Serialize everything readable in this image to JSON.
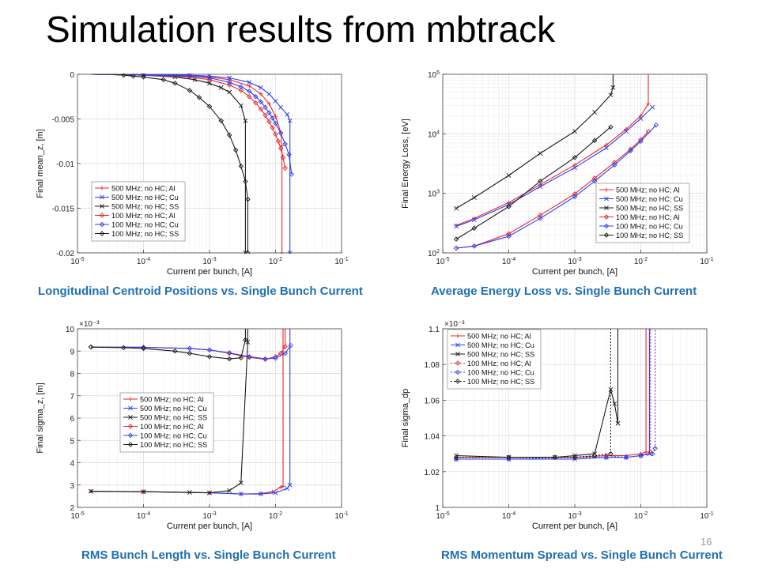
{
  "slide": {
    "title": "Simulation results from mbtrack",
    "page_number": "16"
  },
  "chart_data": [
    {
      "type": "line",
      "caption": "Longitudinal Centroid Positions vs. Single Bunch Current",
      "xlabel": "Current per bunch, [A]",
      "ylabel": "Final mean_z, [m]",
      "xscale": "log",
      "yscale": "linear",
      "xlim": [
        1e-05,
        0.1
      ],
      "ylim": [
        -0.02,
        0
      ],
      "xticks": [
        1e-05,
        0.0001,
        0.001,
        0.01,
        0.1
      ],
      "xticklabels": [
        [
          "10",
          "-5"
        ],
        [
          "10",
          "-4"
        ],
        [
          "10",
          "-3"
        ],
        [
          "10",
          "-2"
        ],
        [
          "10",
          "-1"
        ]
      ],
      "yticks": [
        -0.02,
        -0.015,
        -0.01,
        -0.005,
        0
      ],
      "yticklabels": [
        "-0.02",
        "-0.015",
        "-0.01",
        "-0.005",
        "0"
      ],
      "yexp": "",
      "grid": true,
      "legend_position": "lower-left",
      "series": [
        {
          "name": "500 MHz; no HC; Al",
          "color": "#e8262b",
          "marker": "plus",
          "dash": "solid",
          "x": [
            1.6e-05,
            0.0001,
            0.0005,
            0.001,
            0.002,
            0.004,
            0.006,
            0.008,
            0.01,
            0.012,
            0.0125,
            0.0125
          ],
          "y": [
            0,
            -0.0001,
            -0.0002,
            -0.0003,
            -0.0006,
            -0.0013,
            -0.0022,
            -0.0033,
            -0.0047,
            -0.0065,
            -0.008,
            -0.02
          ]
        },
        {
          "name": "500 MHz; no HC; Cu",
          "color": "#2b3ff0",
          "marker": "x",
          "dash": "solid",
          "x": [
            1.6e-05,
            0.0001,
            0.0005,
            0.001,
            0.002,
            0.004,
            0.006,
            0.008,
            0.01,
            0.012,
            0.015,
            0.0165,
            0.0165
          ],
          "y": [
            0,
            -0.0001,
            -0.0001,
            -0.0002,
            -0.0004,
            -0.0009,
            -0.0015,
            -0.0022,
            -0.003,
            -0.0037,
            -0.0045,
            -0.0052,
            -0.02
          ]
        },
        {
          "name": "500 MHz; no HC; SS",
          "color": "#1a1a1a",
          "marker": "x",
          "dash": "solid",
          "x": [
            1.6e-05,
            0.0001,
            0.0003,
            0.0006,
            0.001,
            0.0015,
            0.002,
            0.003,
            0.0035,
            0.0035
          ],
          "y": [
            0,
            -0.0001,
            -0.0003,
            -0.0006,
            -0.001,
            -0.0015,
            -0.002,
            -0.0035,
            -0.0052,
            -0.02
          ]
        },
        {
          "name": "100 MHz; no HC; Al",
          "color": "#e8262b",
          "marker": "diamond",
          "dash": "solid",
          "x": [
            1.6e-05,
            0.0001,
            0.0005,
            0.001,
            0.002,
            0.003,
            0.004,
            0.005,
            0.006,
            0.007,
            0.008,
            0.009,
            0.01,
            0.011,
            0.012,
            0.013,
            0.014
          ],
          "y": [
            0,
            -0.0001,
            -0.0003,
            -0.0006,
            -0.0012,
            -0.0018,
            -0.0025,
            -0.0032,
            -0.0039,
            -0.0046,
            -0.0053,
            -0.006,
            -0.0067,
            -0.0075,
            -0.0083,
            -0.0093,
            -0.0105
          ]
        },
        {
          "name": "100 MHz; no HC; Cu",
          "color": "#2b3ff0",
          "marker": "diamond",
          "dash": "solid",
          "x": [
            1.6e-05,
            0.0001,
            0.0005,
            0.001,
            0.002,
            0.003,
            0.004,
            0.005,
            0.006,
            0.007,
            0.008,
            0.009,
            0.01,
            0.012,
            0.014,
            0.016,
            0.0175
          ],
          "y": [
            0,
            -0.0001,
            -0.0002,
            -0.0004,
            -0.0009,
            -0.0014,
            -0.0019,
            -0.0025,
            -0.0031,
            -0.0037,
            -0.0043,
            -0.0049,
            -0.0055,
            -0.0066,
            -0.0078,
            -0.009,
            -0.0112
          ]
        },
        {
          "name": "100 MHz; no HC; SS",
          "color": "#1a1a1a",
          "marker": "diamond",
          "dash": "solid",
          "x": [
            1.6e-05,
            3e-05,
            5e-05,
            7e-05,
            0.0001,
            0.0002,
            0.0003,
            0.0005,
            0.0007,
            0.001,
            0.0015,
            0.002,
            0.0025,
            0.003,
            0.0035,
            0.0038,
            0.0038
          ],
          "y": [
            0,
            0,
            -0.0001,
            -0.0002,
            -0.0003,
            -0.0006,
            -0.001,
            -0.0018,
            -0.0026,
            -0.0036,
            -0.0052,
            -0.0068,
            -0.0085,
            -0.0103,
            -0.012,
            -0.014,
            -0.02
          ]
        }
      ]
    },
    {
      "type": "line",
      "caption": "Average Energy Loss vs. Single Bunch Current",
      "xlabel": "Current per bunch, [A]",
      "ylabel": "Final Energy Loss, [eV]",
      "xscale": "log",
      "yscale": "log",
      "xlim": [
        1e-05,
        0.1
      ],
      "ylim": [
        100,
        100000
      ],
      "xticks": [
        1e-05,
        0.0001,
        0.001,
        0.01,
        0.1
      ],
      "xticklabels": [
        [
          "10",
          "-5"
        ],
        [
          "10",
          "-4"
        ],
        [
          "10",
          "-3"
        ],
        [
          "10",
          "-2"
        ],
        [
          "10",
          "-1"
        ]
      ],
      "yticks": [
        100,
        1000,
        10000,
        100000
      ],
      "yticklabels": [
        [
          "10",
          "2"
        ],
        [
          "10",
          "3"
        ],
        [
          "10",
          "4"
        ],
        [
          "10",
          "5"
        ]
      ],
      "yexp": "",
      "grid": true,
      "legend_position": "lower-right",
      "series": [
        {
          "name": "500 MHz; no HC; Al",
          "color": "#e8262b",
          "marker": "plus",
          "dash": "solid",
          "x": [
            1.6e-05,
            3e-05,
            0.0001,
            0.0003,
            0.001,
            0.003,
            0.006,
            0.01,
            0.013,
            0.013
          ],
          "y": [
            290,
            380,
            700,
            1400,
            3000,
            6500,
            12000,
            20000,
            32000,
            100000
          ]
        },
        {
          "name": "500 MHz; no HC; Cu",
          "color": "#2b3ff0",
          "marker": "x",
          "dash": "solid",
          "x": [
            1.6e-05,
            3e-05,
            0.0001,
            0.0003,
            0.001,
            0.003,
            0.006,
            0.01,
            0.015
          ],
          "y": [
            280,
            360,
            650,
            1300,
            2700,
            5800,
            11000,
            18000,
            28000
          ]
        },
        {
          "name": "500 MHz; no HC; SS",
          "color": "#1a1a1a",
          "marker": "x",
          "dash": "solid",
          "x": [
            1.6e-05,
            3e-05,
            0.0001,
            0.0003,
            0.001,
            0.002,
            0.0035,
            0.0038,
            0.0038
          ],
          "y": [
            560,
            850,
            2000,
            4700,
            11000,
            23000,
            45000,
            60000,
            100000
          ]
        },
        {
          "name": "100 MHz; no HC; Al",
          "color": "#e8262b",
          "marker": "diamond",
          "dash": "solid",
          "x": [
            1.6e-05,
            3e-05,
            0.0001,
            0.0003,
            0.001,
            0.002,
            0.004,
            0.007,
            0.01,
            0.013
          ],
          "y": [
            120,
            130,
            210,
            430,
            980,
            1800,
            3300,
            5500,
            8000,
            11000
          ]
        },
        {
          "name": "100 MHz; no HC; Cu",
          "color": "#2b3ff0",
          "marker": "diamond",
          "dash": "solid",
          "x": [
            1.6e-05,
            3e-05,
            0.0001,
            0.0003,
            0.001,
            0.002,
            0.004,
            0.007,
            0.01,
            0.017
          ],
          "y": [
            120,
            130,
            190,
            380,
            880,
            1600,
            3000,
            5200,
            7500,
            14000
          ]
        },
        {
          "name": "100 MHz; no HC; SS",
          "color": "#1a1a1a",
          "marker": "diamond",
          "dash": "solid",
          "x": [
            1.6e-05,
            3e-05,
            0.0001,
            0.0003,
            0.001,
            0.002,
            0.0035
          ],
          "y": [
            170,
            260,
            600,
            1600,
            4000,
            7700,
            13000
          ]
        }
      ]
    },
    {
      "type": "line",
      "caption": "RMS Bunch Length vs. Single Bunch Current",
      "xlabel": "Current per bunch, [A]",
      "ylabel": "Final sigma_z, [m]",
      "xscale": "log",
      "yscale": "linear",
      "xlim": [
        1e-05,
        0.1
      ],
      "ylim": [
        2,
        10
      ],
      "xticks": [
        1e-05,
        0.0001,
        0.001,
        0.01,
        0.1
      ],
      "xticklabels": [
        [
          "10",
          "-5"
        ],
        [
          "10",
          "-4"
        ],
        [
          "10",
          "-3"
        ],
        [
          "10",
          "-2"
        ],
        [
          "10",
          "-1"
        ]
      ],
      "yticks": [
        2,
        3,
        4,
        5,
        6,
        7,
        8,
        9,
        10
      ],
      "yticklabels": [
        "2",
        "3",
        "4",
        "5",
        "6",
        "7",
        "8",
        "9",
        "10"
      ],
      "yexp": "×10⁻³",
      "grid": true,
      "legend_position": "center",
      "series": [
        {
          "name": "500 MHz; no HC; Al",
          "color": "#e8262b",
          "marker": "plus",
          "dash": "solid",
          "x": [
            1.6e-05,
            0.0001,
            0.001,
            0.003,
            0.006,
            0.009,
            0.012,
            0.013,
            0.013
          ],
          "y": [
            2.72,
            2.7,
            2.65,
            2.6,
            2.62,
            2.7,
            2.9,
            2.95,
            10
          ]
        },
        {
          "name": "500 MHz; no HC; Cu",
          "color": "#2b3ff0",
          "marker": "x",
          "dash": "solid",
          "x": [
            1.6e-05,
            0.0001,
            0.001,
            0.003,
            0.006,
            0.01,
            0.015,
            0.0165,
            0.0165
          ],
          "y": [
            2.72,
            2.7,
            2.65,
            2.6,
            2.6,
            2.65,
            2.85,
            3.0,
            10
          ]
        },
        {
          "name": "500 MHz; no HC; SS",
          "color": "#1a1a1a",
          "marker": "x",
          "dash": "solid",
          "x": [
            1.6e-05,
            0.0001,
            0.0005,
            0.001,
            0.002,
            0.003,
            0.0038,
            0.0038
          ],
          "y": [
            2.72,
            2.7,
            2.67,
            2.65,
            2.75,
            3.1,
            9.4,
            10
          ]
        },
        {
          "name": "100 MHz; no HC; Al",
          "color": "#e8262b",
          "marker": "diamond",
          "dash": "solid",
          "x": [
            1.6e-05,
            0.0001,
            0.0005,
            0.001,
            0.002,
            0.004,
            0.007,
            0.01,
            0.012,
            0.014,
            0.014
          ],
          "y": [
            9.18,
            9.17,
            9.12,
            9.05,
            8.9,
            8.72,
            8.63,
            8.75,
            8.9,
            9.2,
            10
          ]
        },
        {
          "name": "100 MHz; no HC; Cu",
          "color": "#2b3ff0",
          "marker": "diamond",
          "dash": "solid",
          "x": [
            1.6e-05,
            0.0001,
            0.0005,
            0.001,
            0.002,
            0.004,
            0.007,
            0.01,
            0.014,
            0.017
          ],
          "y": [
            9.18,
            9.17,
            9.12,
            9.05,
            8.92,
            8.75,
            8.65,
            8.68,
            8.9,
            9.25
          ]
        },
        {
          "name": "100 MHz; no HC; SS",
          "color": "#1a1a1a",
          "marker": "diamond",
          "dash": "solid",
          "x": [
            1.6e-05,
            5e-05,
            0.0001,
            0.0003,
            0.0005,
            0.001,
            0.002,
            0.003,
            0.0035,
            0.0035
          ],
          "y": [
            9.18,
            9.15,
            9.12,
            9.0,
            8.9,
            8.75,
            8.65,
            8.7,
            9.5,
            10
          ]
        }
      ]
    },
    {
      "type": "line",
      "caption": "RMS Momentum Spread vs. Single Bunch Current",
      "xlabel": "Current per bunch, [A]",
      "ylabel": "Final sigma_dp",
      "xscale": "log",
      "yscale": "linear",
      "xlim": [
        1e-05,
        0.1
      ],
      "ylim": [
        1,
        1.1
      ],
      "xticks": [
        1e-05,
        0.0001,
        0.001,
        0.01,
        0.1
      ],
      "xticklabels": [
        [
          "10",
          "-5"
        ],
        [
          "10",
          "-4"
        ],
        [
          "10",
          "-3"
        ],
        [
          "10",
          "-2"
        ],
        [
          "10",
          "-1"
        ]
      ],
      "yticks": [
        1,
        1.02,
        1.04,
        1.06,
        1.08,
        1.1
      ],
      "yticklabels": [
        "1",
        "1.02",
        "1.04",
        "1.06",
        "1.08",
        "1.1"
      ],
      "yexp": "×10⁻³",
      "grid": true,
      "legend_position": "top-left",
      "series": [
        {
          "name": "500 MHz; no HC; Al",
          "color": "#e8262b",
          "marker": "plus",
          "dash": "solid",
          "x": [
            1.6e-05,
            0.0001,
            0.001,
            0.003,
            0.006,
            0.01,
            0.012,
            0.012
          ],
          "y": [
            1.028,
            1.028,
            1.028,
            1.029,
            1.029,
            1.03,
            1.031,
            1.1
          ]
        },
        {
          "name": "500 MHz; no HC; Cu",
          "color": "#2b3ff0",
          "marker": "x",
          "dash": "solid",
          "x": [
            1.6e-05,
            0.0001,
            0.001,
            0.003,
            0.006,
            0.01,
            0.0135,
            0.0135
          ],
          "y": [
            1.027,
            1.027,
            1.027,
            1.028,
            1.028,
            1.029,
            1.03,
            1.1
          ]
        },
        {
          "name": "500 MHz; no HC; SS",
          "color": "#1a1a1a",
          "marker": "x",
          "dash": "solid",
          "x": [
            1.6e-05,
            0.0001,
            0.0005,
            0.001,
            0.002,
            0.0035,
            0.004,
            0.0045,
            0.0045
          ],
          "y": [
            1.029,
            1.028,
            1.028,
            1.029,
            1.03,
            1.066,
            1.058,
            1.047,
            1.1
          ]
        },
        {
          "name": "100 MHz; no HC; Al",
          "color": "#e8262b",
          "marker": "diamond",
          "dash": "dotted",
          "x": [
            1.6e-05,
            0.0001,
            0.001,
            0.003,
            0.006,
            0.01,
            0.014,
            0.014
          ],
          "y": [
            1.028,
            1.028,
            1.028,
            1.029,
            1.028,
            1.029,
            1.031,
            1.1
          ]
        },
        {
          "name": "100 MHz; no HC; Cu",
          "color": "#2b3ff0",
          "marker": "diamond",
          "dash": "dotted",
          "x": [
            1.6e-05,
            0.0001,
            0.001,
            0.003,
            0.006,
            0.01,
            0.015,
            0.0165,
            0.0165
          ],
          "y": [
            1.027,
            1.027,
            1.028,
            1.028,
            1.028,
            1.029,
            1.03,
            1.033,
            1.1
          ]
        },
        {
          "name": "100 MHz; no HC; SS",
          "color": "#1a1a1a",
          "marker": "diamond",
          "dash": "dotted",
          "x": [
            1.6e-05,
            0.0001,
            0.0005,
            0.001,
            0.002,
            0.0035,
            0.0035
          ],
          "y": [
            1.028,
            1.028,
            1.028,
            1.028,
            1.029,
            1.03,
            1.1
          ]
        }
      ]
    }
  ]
}
